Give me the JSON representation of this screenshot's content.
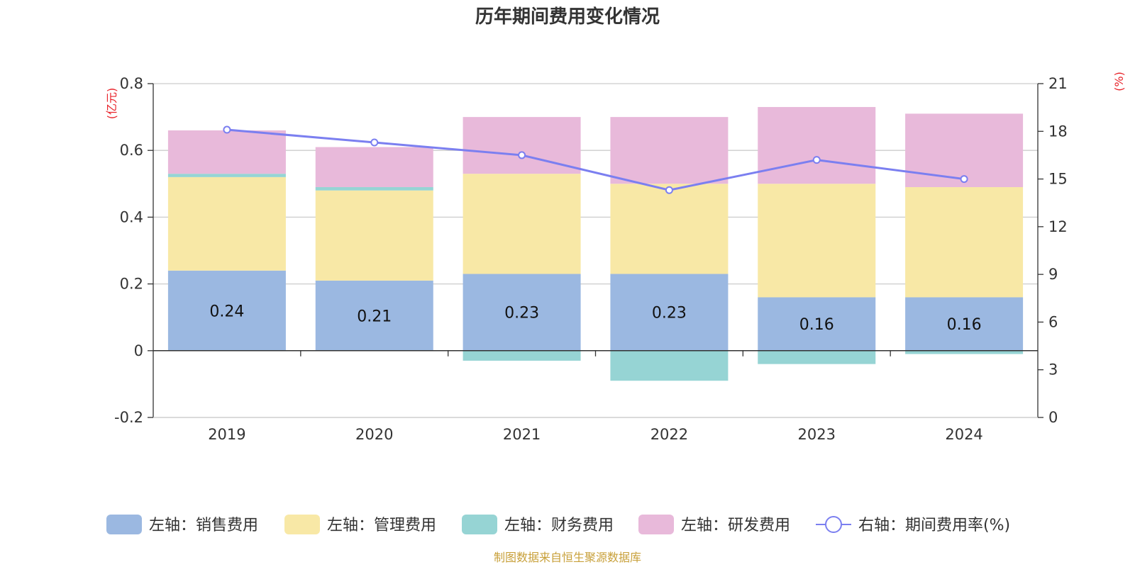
{
  "colors": {
    "sales": "#9bb8e1",
    "admin": "#f8e8a6",
    "finance": "#96d4d4",
    "rnd": "#e8b9da",
    "rate": "#7b7ff0",
    "unit": "#e8232a",
    "source": "#c8a03a"
  },
  "chart_data": {
    "type": "bar",
    "stacked": true,
    "title": "历年期间费用变化情况",
    "categories": [
      "2019",
      "2020",
      "2021",
      "2022",
      "2023",
      "2024"
    ],
    "left_axis": {
      "unit": "(亿元)",
      "ylim": [
        -0.2,
        0.8
      ],
      "ticks": [
        "-0.2",
        "0",
        "0.2",
        "0.4",
        "0.6",
        "0.8"
      ]
    },
    "right_axis": {
      "unit": "(%)",
      "ylim": [
        0,
        21
      ],
      "ticks": [
        "0",
        "3",
        "6",
        "9",
        "12",
        "15",
        "18",
        "21"
      ]
    },
    "series": [
      {
        "name": "左轴：销售费用",
        "key": "sales",
        "values": [
          0.24,
          0.21,
          0.23,
          0.23,
          0.16,
          0.16
        ],
        "labels": [
          "0.24",
          "0.21",
          "0.23",
          "0.23",
          "0.16",
          "0.16"
        ]
      },
      {
        "name": "左轴：管理费用",
        "key": "admin",
        "values": [
          0.28,
          0.27,
          0.3,
          0.27,
          0.34,
          0.33
        ]
      },
      {
        "name": "左轴：财务费用",
        "key": "finance",
        "values": [
          0.01,
          0.01,
          -0.03,
          -0.09,
          -0.04,
          -0.01
        ]
      },
      {
        "name": "左轴：研发费用",
        "key": "rnd",
        "values": [
          0.13,
          0.12,
          0.17,
          0.2,
          0.23,
          0.22
        ]
      }
    ],
    "line": {
      "name": "右轴：期间费用率(%)",
      "key": "rate",
      "values": [
        18.1,
        17.3,
        16.5,
        14.3,
        16.2,
        15.0
      ]
    },
    "grid": true,
    "legend": "bottom"
  },
  "source": "制图数据来自恒生聚源数据库"
}
